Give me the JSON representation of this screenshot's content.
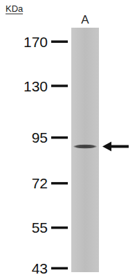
{
  "chart_data": {
    "type": "blot",
    "y_label": "KDa",
    "categories": [
      "A"
    ],
    "values": [
      90
    ],
    "ylim": [
      42,
      185
    ],
    "yticks": [
      43,
      55,
      72,
      95,
      130,
      170
    ],
    "log": "y",
    "color": "#3a3a3a"
  }
}
